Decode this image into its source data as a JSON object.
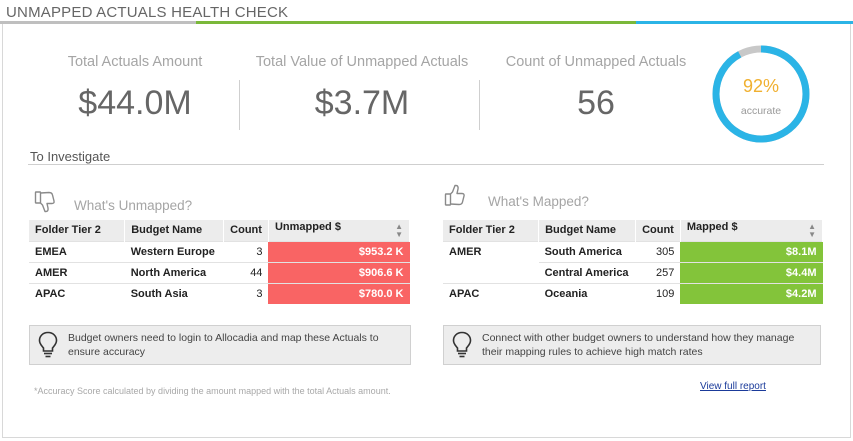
{
  "header": {
    "title": "UNMAPPED ACTUALS HEALTH CHECK"
  },
  "colors": {
    "accent_blue": "#2bb4e6",
    "accent_green": "#7ab83a",
    "unmapped_red": "#f96464",
    "mapped_green": "#83c43a",
    "gauge_pct": "#f0b030"
  },
  "kpis": [
    {
      "label": "Total Actuals Amount",
      "value": "$44.0M"
    },
    {
      "label": "Total Value of Unmapped Actuals",
      "value": "$3.7M"
    },
    {
      "label": "Count of Unmapped Actuals",
      "value": "56"
    }
  ],
  "gauge": {
    "percent_label": "92%",
    "sub_label": "accurate",
    "fraction": 0.92
  },
  "investigate": {
    "title": "To Investigate"
  },
  "unmapped": {
    "icon": "thumbs-down-icon",
    "title": "What's Unmapped?",
    "columns": [
      "Folder Tier 2",
      "Budget Name",
      "Count",
      "Unmapped $"
    ],
    "rows": [
      {
        "folder": "EMEA",
        "budget": "Western Europe",
        "count": "3",
        "amount": "$953.2 K"
      },
      {
        "folder": "AMER",
        "budget": "North America",
        "count": "44",
        "amount": "$906.6 K"
      },
      {
        "folder": "APAC",
        "budget": "South Asia",
        "count": "3",
        "amount": "$780.0 K"
      }
    ],
    "tip": "Budget owners need to login to Allocadia and map these Actuals to ensure accuracy"
  },
  "mapped": {
    "icon": "thumbs-up-icon",
    "title": "What's Mapped?",
    "columns": [
      "Folder Tier 2",
      "Budget Name",
      "Count",
      "Mapped $"
    ],
    "rows": [
      {
        "folder": "AMER",
        "budget": "South America",
        "count": "305",
        "amount": "$8.1M"
      },
      {
        "folder": "",
        "budget": "Central America",
        "count": "257",
        "amount": "$4.4M"
      },
      {
        "folder": "APAC",
        "budget": "Oceania",
        "count": "109",
        "amount": "$4.2M"
      }
    ],
    "tip": "Connect with other budget owners to understand how they manage their mapping rules to achieve high match rates"
  },
  "footnote": "*Accuracy Score calculated by dividing the amount mapped with the total Actuals amount.",
  "full_report_link": "View full report"
}
